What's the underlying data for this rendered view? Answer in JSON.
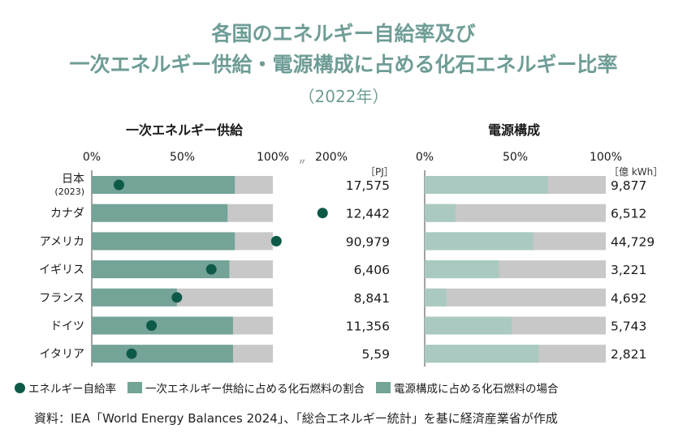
{
  "title_line1": "各国のエネルギー自給率及び",
  "title_line2": "一次エネルギー供給・電源構成に占める化石エネルギー比率",
  "title_line3": "（2022年）",
  "colors": {
    "title": "#6e9d96",
    "primary": "#74a398",
    "power": "#a9c9c1",
    "gray": "#c8c8c8",
    "dot": "#0e5a48"
  },
  "chart_data": [
    {
      "type": "bar",
      "title": "一次エネルギー供給",
      "unit": "［PJ］",
      "axis_ticks": [
        "0%",
        "50%",
        "100%",
        "200%"
      ],
      "axis_break": "〃",
      "categories": [
        "日本",
        "カナダ",
        "アメリカ",
        "イギリス",
        "フランス",
        "ドイツ",
        "イタリア"
      ],
      "category_sub": [
        "(2023)",
        "",
        "",
        "",
        "",
        "",
        ""
      ],
      "fossil_share_pct": [
        79,
        75,
        79,
        76,
        47,
        78,
        78
      ],
      "self_sufficiency_pct": [
        15,
        185,
        106,
        66,
        47,
        33,
        22
      ],
      "totals": [
        "17,575",
        "12,442",
        "90,979",
        "6,406",
        "8,841",
        "11,356",
        "5,59"
      ]
    },
    {
      "type": "bar",
      "title": "電源構成",
      "unit": "［億 kWh］",
      "axis_ticks": [
        "0%",
        "50%",
        "100%"
      ],
      "categories": [
        "日本",
        "カナダ",
        "アメリカ",
        "イギリス",
        "フランス",
        "ドイツ",
        "イタリア"
      ],
      "fossil_share_pct": [
        68,
        17,
        60,
        41,
        12,
        48,
        63
      ],
      "totals": [
        "9,877",
        "6,512",
        "44,729",
        "3,221",
        "4,692",
        "5,743",
        "2,821"
      ]
    }
  ],
  "legend": {
    "dot_label": "エネルギー自給率",
    "primary_label": "一次エネルギー供給に占める化石燃料の割合",
    "power_label": "電源構成に占める化石燃料の場合"
  },
  "source": "資料：IEA「World Energy Balances 2024」、「総合エネルギー統計」を基に経済産業省が作成"
}
